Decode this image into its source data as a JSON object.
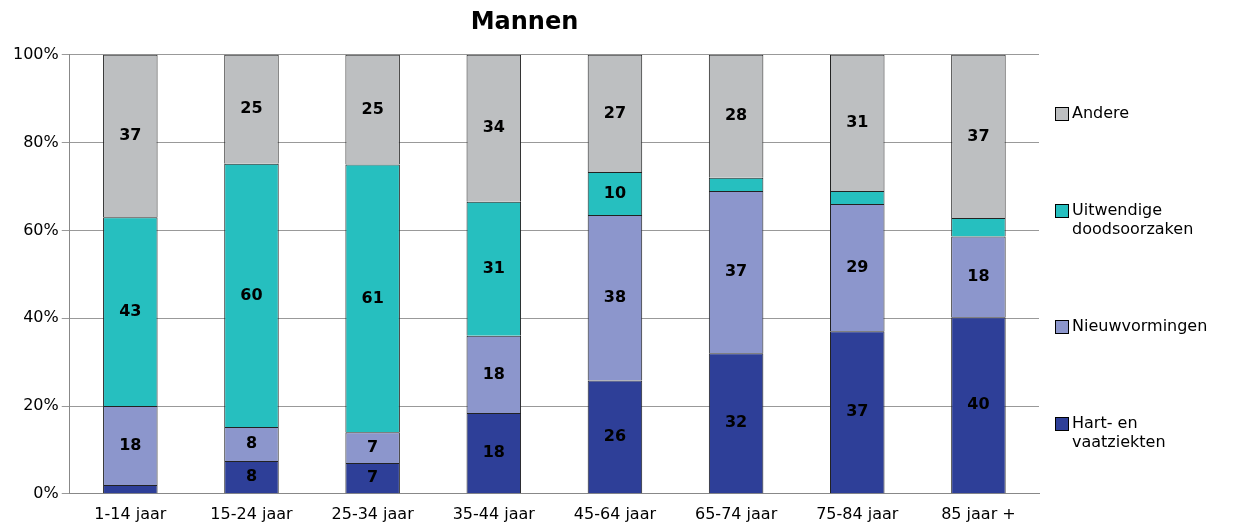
{
  "chart_data": {
    "type": "bar",
    "title": "Mannen",
    "stacked": true,
    "grid": "y",
    "legend": "right",
    "categories": [
      "1-14 jaar",
      "15-24 jaar",
      "25-34 jaar",
      "35-44 jaar",
      "45-64 jaar",
      "65-74 jaar",
      "75-84 jaar",
      "85 jaar +"
    ],
    "ylim": [
      0,
      100
    ],
    "yticks": [
      {
        "value": 0,
        "label": "0%"
      },
      {
        "value": 20,
        "label": "20%"
      },
      {
        "value": 40,
        "label": "40%"
      },
      {
        "value": 60,
        "label": "60%"
      },
      {
        "value": 80,
        "label": "80%"
      },
      {
        "value": 100,
        "label": "100%"
      }
    ],
    "series": [
      {
        "name": "Hart- en vaatziekten",
        "color": "#2e3f98",
        "values": [
          2,
          7.5,
          7,
          18.4,
          25.8,
          32,
          37,
          40.2
        ],
        "value_labels": [
          null,
          "8",
          "7",
          "18",
          "26",
          "32",
          "37",
          "40"
        ]
      },
      {
        "name": "Nieuwvormingen",
        "color": "#8c96cc",
        "values": [
          18,
          7.7,
          7,
          17.6,
          37.7,
          37,
          29,
          18.4
        ],
        "value_labels": [
          "18",
          "8",
          "7",
          "18",
          "38",
          "37",
          "29",
          "18"
        ]
      },
      {
        "name": "Uitwendige doodsoorzaken",
        "color": "#26bfbf",
        "values": [
          43,
          60,
          61,
          30.5,
          9.8,
          3,
          3,
          4.2
        ],
        "value_labels": [
          "43",
          "60",
          "61",
          "31",
          "10",
          null,
          null,
          null
        ]
      },
      {
        "name": "Andere",
        "color": "#bdbfc1",
        "values": [
          37,
          24.8,
          25,
          33.5,
          26.7,
          28,
          31,
          37.2
        ],
        "value_labels": [
          "37",
          "25",
          "25",
          "34",
          "27",
          "28",
          "31",
          "37"
        ]
      }
    ]
  }
}
